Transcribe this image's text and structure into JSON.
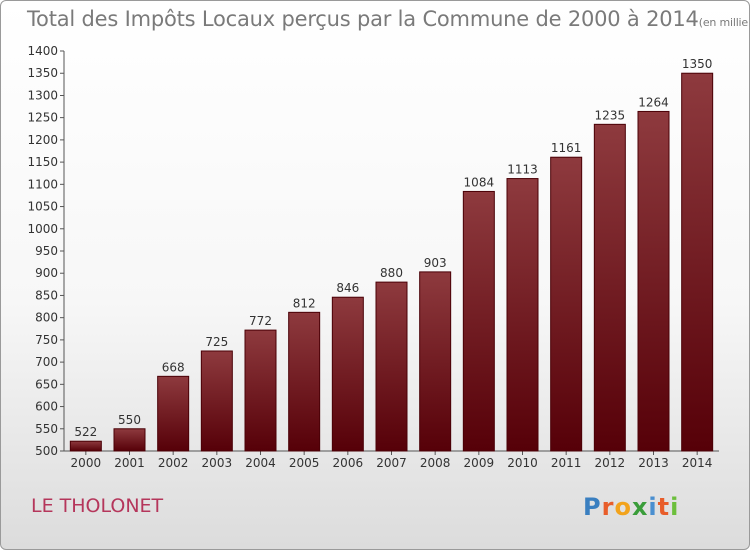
{
  "title": "Total des Impôts Locaux perçus par la Commune de 2000 à 2014",
  "title_unit": "(en milliers d'€)",
  "commune": "LE THOLONET",
  "logo": {
    "text": "Proxiti"
  },
  "chart_data": {
    "type": "bar",
    "categories": [
      "2000",
      "2001",
      "2002",
      "2003",
      "2004",
      "2005",
      "2006",
      "2007",
      "2008",
      "2009",
      "2010",
      "2011",
      "2012",
      "2013",
      "2014"
    ],
    "values": [
      522,
      550,
      668,
      725,
      772,
      812,
      846,
      880,
      903,
      1084,
      1113,
      1161,
      1235,
      1264,
      1350
    ],
    "ylim": [
      500,
      1400
    ],
    "yticks": [
      500,
      550,
      600,
      650,
      700,
      750,
      800,
      850,
      900,
      950,
      1000,
      1050,
      1100,
      1150,
      1200,
      1250,
      1300,
      1350,
      1400
    ],
    "grid": false,
    "bar_color": "#6e0f16"
  }
}
